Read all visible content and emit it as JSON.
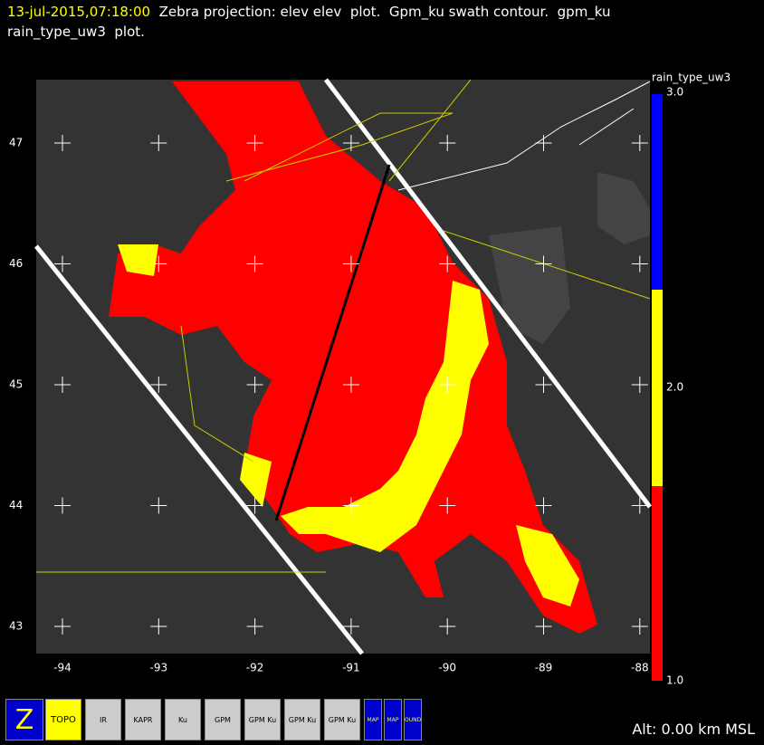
{
  "header": {
    "time": "13-jul-2015,07:18:00",
    "line1": "Zebra projection: elev elev  plot.  Gpm_ku swath contour.  gpm_ku",
    "line2": "rain_type_uw3  plot."
  },
  "map": {
    "x_labels": [
      "-94",
      "-93",
      "-92",
      "-91",
      "-90",
      "-89",
      "-88"
    ],
    "y_labels": [
      "47",
      "46",
      "45",
      "44",
      "43"
    ]
  },
  "colorbar": {
    "title": "rain_type_uw3",
    "labels": [
      "3.0",
      "2.0",
      "1.0"
    ]
  },
  "toolbar": {
    "buttons": [
      "Z",
      "TOPO",
      "IR",
      "KAPR",
      "Ku",
      "GPM",
      "GPM Ku",
      "GPM Ku",
      "GPM Ku",
      "MAP",
      "MAP",
      "BOUNDS"
    ]
  },
  "status": "Alt: 0.00 km MSL"
}
